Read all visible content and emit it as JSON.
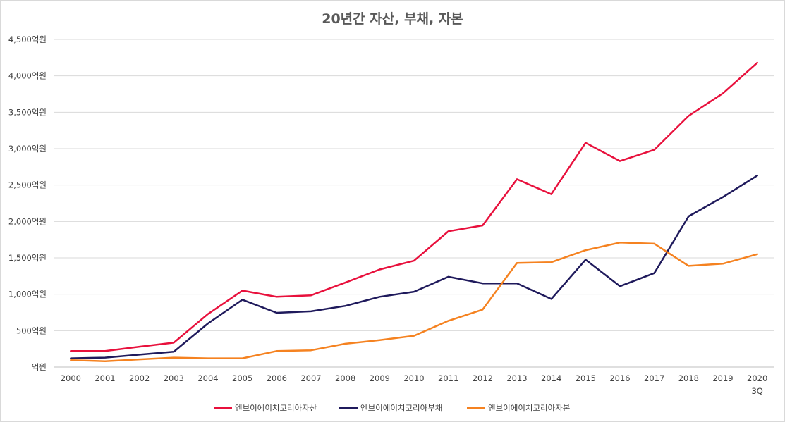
{
  "chart_data": {
    "type": "line",
    "title": "20년간 자산, 부채, 자본",
    "categories": [
      "2000",
      "2001",
      "2002",
      "2003",
      "2004",
      "2005",
      "2006",
      "2007",
      "2008",
      "2009",
      "2010",
      "2011",
      "2012",
      "2013",
      "2014",
      "2015",
      "2016",
      "2017",
      "2018",
      "2019",
      "2020\n3Q"
    ],
    "category_labels": [
      [
        "2000"
      ],
      [
        "2001"
      ],
      [
        "2002"
      ],
      [
        "2003"
      ],
      [
        "2004"
      ],
      [
        "2005"
      ],
      [
        "2006"
      ],
      [
        "2007"
      ],
      [
        "2008"
      ],
      [
        "2009"
      ],
      [
        "2010"
      ],
      [
        "2011"
      ],
      [
        "2012"
      ],
      [
        "2013"
      ],
      [
        "2014"
      ],
      [
        "2015"
      ],
      [
        "2016"
      ],
      [
        "2017"
      ],
      [
        "2018"
      ],
      [
        "2019"
      ],
      [
        "2020",
        "3Q"
      ]
    ],
    "y_ticks": [
      "억원",
      "500억원",
      "1,000억원",
      "1,500억원",
      "2,000억원",
      "2,500억원",
      "3,000억원",
      "3,500억원",
      "4,000억원",
      "4,500억원"
    ],
    "y_tick_values": [
      0,
      500,
      1000,
      1500,
      2000,
      2500,
      3000,
      3500,
      4000,
      4500
    ],
    "ylim": [
      0,
      4500
    ],
    "grid": "horizontal",
    "legend_position": "bottom",
    "series": [
      {
        "name": "엔브이에이치코리아자산",
        "color": "#e8103c",
        "values": [
          220,
          220,
          280,
          335,
          730,
          1050,
          965,
          985,
          1160,
          1340,
          1460,
          1865,
          1945,
          2580,
          2375,
          3080,
          2830,
          2985,
          3450,
          3760,
          4180
        ]
      },
      {
        "name": "엔브이에이치코리아부채",
        "color": "#1f1a5c",
        "values": [
          120,
          130,
          170,
          210,
          600,
          925,
          745,
          765,
          840,
          965,
          1035,
          1240,
          1150,
          1150,
          935,
          1475,
          1110,
          1290,
          2070,
          2335,
          2630
        ]
      },
      {
        "name": "엔브이에이치코리아자본",
        "color": "#f58220",
        "values": [
          95,
          80,
          105,
          130,
          120,
          120,
          220,
          230,
          320,
          370,
          430,
          635,
          790,
          1430,
          1440,
          1605,
          1710,
          1695,
          1390,
          1420,
          1550
        ]
      }
    ]
  }
}
